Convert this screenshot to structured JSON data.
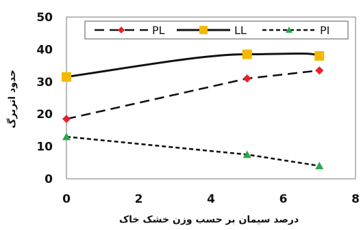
{
  "chart_data": {
    "type": "line",
    "xlabel": "درصد سیمان بر حسب وزن خشک خاک",
    "ylabel": "حدود اتربرگ",
    "xlim": [
      0,
      8
    ],
    "ylim": [
      0,
      50
    ],
    "xticks": [
      "0",
      "2",
      "4",
      "6",
      "8"
    ],
    "yticks": [
      "0",
      "10",
      "20",
      "30",
      "40",
      "50"
    ],
    "grid": false,
    "legend": "top",
    "series": [
      {
        "name": "PL",
        "color": "#e8202a",
        "line": "dashed",
        "marker": "diamond",
        "x": [
          0,
          5,
          7
        ],
        "y": [
          18.5,
          31,
          33.5
        ]
      },
      {
        "name": "LL",
        "color": "#f5b800",
        "line": "solid",
        "marker": "square",
        "x": [
          0,
          5,
          7
        ],
        "y": [
          31.5,
          38.5,
          38
        ]
      },
      {
        "name": "PI",
        "color": "#2aa84a",
        "line": "dotted",
        "marker": "triangle",
        "x": [
          0,
          5,
          7
        ],
        "y": [
          13,
          7.5,
          4
        ]
      }
    ]
  }
}
